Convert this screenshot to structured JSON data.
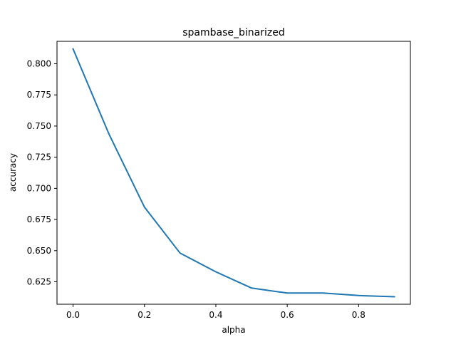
{
  "chart_data": {
    "type": "line",
    "title": "spambase_binarized",
    "xlabel": "alpha",
    "ylabel": "accuracy",
    "xlim": [
      -0.045,
      0.945
    ],
    "ylim": [
      0.607,
      0.818
    ],
    "x_ticks": [
      0.0,
      0.2,
      0.4,
      0.6,
      0.8
    ],
    "x_tick_labels": [
      "0.0",
      "0.2",
      "0.4",
      "0.6",
      "0.8"
    ],
    "y_ticks": [
      0.625,
      0.65,
      0.675,
      0.7,
      0.725,
      0.75,
      0.775,
      0.8
    ],
    "y_tick_labels": [
      "0.625",
      "0.650",
      "0.675",
      "0.700",
      "0.725",
      "0.750",
      "0.775",
      "0.800"
    ],
    "grid": false,
    "series": [
      {
        "color": "#1f77b4",
        "x": [
          0.0,
          0.1,
          0.2,
          0.3,
          0.4,
          0.5,
          0.6,
          0.7,
          0.8,
          0.9
        ],
        "y": [
          0.812,
          0.744,
          0.685,
          0.648,
          0.633,
          0.62,
          0.616,
          0.616,
          0.614,
          0.613
        ]
      }
    ]
  }
}
